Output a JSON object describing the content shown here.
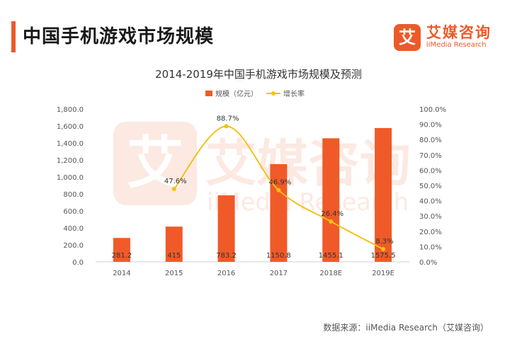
{
  "header": {
    "title": "中国手机游戏市场规模"
  },
  "logo": {
    "icon_char": "艾",
    "name": "艾媒咨询",
    "subtitle": "iiMedia Research"
  },
  "watermark": {
    "icon_char": "艾",
    "name": "艾媒咨询",
    "subtitle": "iiMedia Research"
  },
  "source": "数据来源：iiMedia Research（艾媒咨询）",
  "colors": {
    "accent": "#ec5a2a",
    "bar": "#f05a28",
    "line": "#f2c218"
  },
  "chart_data": {
    "type": "bar",
    "title": "2014-2019年中国手机游戏市场规模及预测",
    "categories": [
      "2014",
      "2015",
      "2016",
      "2017",
      "2018E",
      "2019E"
    ],
    "series": [
      {
        "name": "规模（亿元）",
        "type": "bar",
        "axis": "left",
        "values": [
          281.2,
          415,
          783.2,
          1150.8,
          1455.1,
          1575.5
        ],
        "labels": [
          "281.2",
          "415",
          "783.2",
          "1150.8",
          "1455.1",
          "1575.5"
        ]
      },
      {
        "name": "增长率",
        "type": "line",
        "axis": "right",
        "values": [
          null,
          47.6,
          88.7,
          46.9,
          26.4,
          8.3
        ],
        "labels": [
          "",
          "47.6%",
          "88.7%",
          "46.9%",
          "26.4%",
          "8.3%"
        ]
      }
    ],
    "left_axis": {
      "ylim": [
        0,
        1800
      ],
      "ticks": [
        "0.0",
        "200.0",
        "400.0",
        "600.0",
        "800.0",
        "1,000.0",
        "1,200.0",
        "1,400.0",
        "1,600.0",
        "1,800.0"
      ]
    },
    "right_axis": {
      "ylim": [
        0,
        100
      ],
      "ticks": [
        "0.0%",
        "10.0%",
        "20.0%",
        "30.0%",
        "40.0%",
        "50.0%",
        "60.0%",
        "70.0%",
        "80.0%",
        "90.0%",
        "100.0%"
      ]
    },
    "legend": "top-center",
    "grid": false
  }
}
